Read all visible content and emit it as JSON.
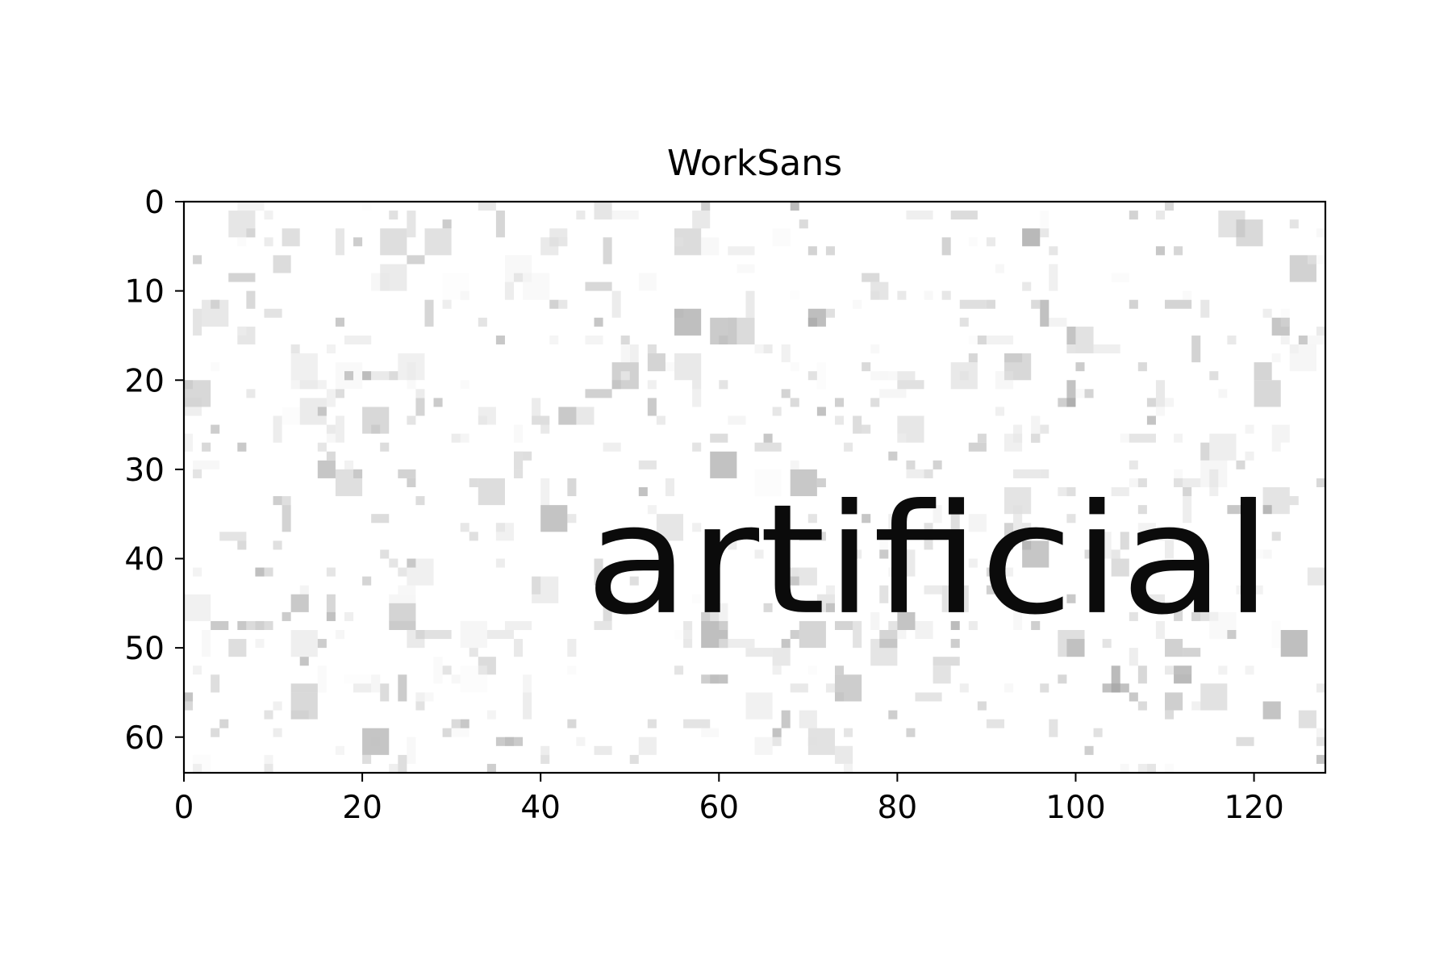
{
  "chart_data": {
    "type": "heatmap",
    "title": "WorkSans",
    "rendered_text": "artificial",
    "image_size": {
      "width": 128,
      "height": 64
    },
    "xlim": [
      0,
      128
    ],
    "ylim": [
      64,
      0
    ],
    "xticks": [
      0,
      20,
      40,
      60,
      80,
      100,
      120
    ],
    "yticks": [
      0,
      10,
      20,
      30,
      40,
      50,
      60
    ],
    "colormap": "gray_r",
    "grid": false,
    "legend": "none",
    "text_extent": {
      "x_start": 45,
      "x_end": 122,
      "y_top": 32,
      "y_baseline": 46
    }
  }
}
